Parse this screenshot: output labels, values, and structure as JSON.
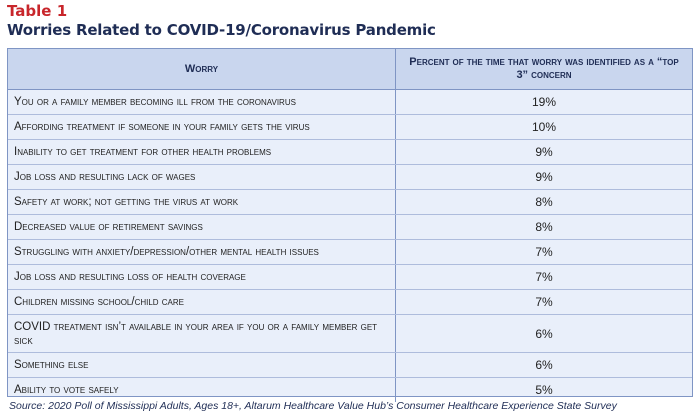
{
  "table_label": "Table 1",
  "title": "Worries Related to COVID-19/Coronavirus Pandemic",
  "columns": [
    "Worry",
    "Percent of the time that worry was identified as a “top 3” concern"
  ],
  "rows": [
    {
      "worry": "You or a family member becoming ill from the coronavirus",
      "percent": "19%"
    },
    {
      "worry": "Affording treatment if someone in your family gets the virus",
      "percent": "10%"
    },
    {
      "worry": "Inability to get treatment for other health problems",
      "percent": "9%"
    },
    {
      "worry": "Job loss and resulting lack of wages",
      "percent": "9%"
    },
    {
      "worry": "Safety at work; not getting the virus at work",
      "percent": "8%"
    },
    {
      "worry": "Decreased value of retirement savings",
      "percent": "8%"
    },
    {
      "worry": "Struggling with anxiety/depression/other mental health issues",
      "percent": "7%"
    },
    {
      "worry": "Job loss and resulting loss of health coverage",
      "percent": "7%"
    },
    {
      "worry": "Children missing school/child care",
      "percent": "7%"
    },
    {
      "worry": "COVID treatment isn’t available in your area if you or a family member get sick",
      "percent": "6%"
    },
    {
      "worry": "Something else",
      "percent": "6%"
    },
    {
      "worry": "Ability to vote safely",
      "percent": "5%"
    }
  ],
  "source": "Source: 2020 Poll of Mississippi Adults, Ages 18+, Altarum Healthcare Value Hub’s Consumer Healthcare Experience State Survey"
}
